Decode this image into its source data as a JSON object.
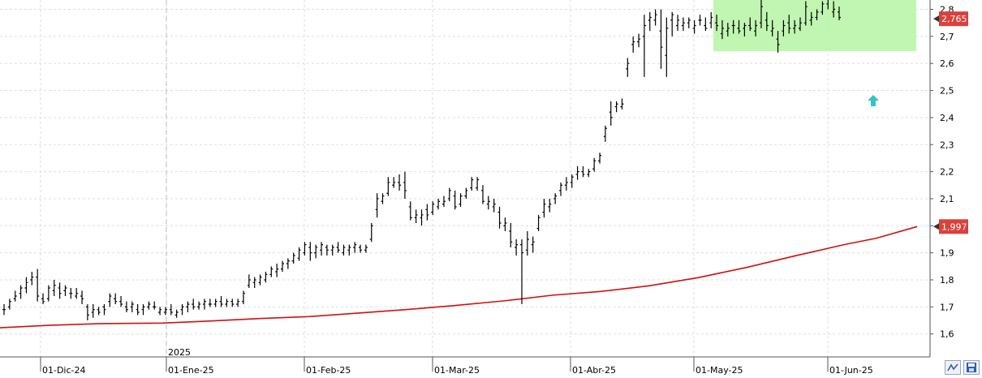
{
  "chart_data": {
    "type": "ohlc",
    "ylim": [
      1.55,
      2.88
    ],
    "y_ticks": [
      "1,6",
      "1,7",
      "1,8",
      "1,9",
      "2",
      "2,1",
      "2,2",
      "2,3",
      "2,4",
      "2,5",
      "2,6",
      "2,7",
      "2,8"
    ],
    "y_tick_values": [
      1.6,
      1.7,
      1.8,
      1.9,
      2.0,
      2.1,
      2.2,
      2.3,
      2.4,
      2.5,
      2.6,
      2.7,
      2.8
    ],
    "x_labels": [
      "01-Dic-24",
      "01-Ene-25",
      "01-Feb-25",
      "01-Mar-25",
      "01-Abr-25",
      "01-May-25",
      "01-Jun-25"
    ],
    "year_label": "2025",
    "last_price_label": "2,765",
    "last_price": 2.765,
    "ma_label": "1,997",
    "ma_value": 1.997,
    "grid": true,
    "colors": {
      "bars": "#000000",
      "ma_line": "#d01010",
      "price_tag": "#d9413a",
      "zone_fill": "#b9f5a9",
      "arrow": "#36c1c8"
    },
    "ohlc": [
      [
        1.69,
        1.71,
        1.67,
        1.69
      ],
      [
        1.7,
        1.73,
        1.69,
        1.72
      ],
      [
        1.73,
        1.76,
        1.72,
        1.74
      ],
      [
        1.75,
        1.78,
        1.73,
        1.77
      ],
      [
        1.77,
        1.81,
        1.75,
        1.79
      ],
      [
        1.8,
        1.83,
        1.78,
        1.81
      ],
      [
        1.81,
        1.84,
        1.72,
        1.74
      ],
      [
        1.73,
        1.75,
        1.71,
        1.72
      ],
      [
        1.73,
        1.78,
        1.72,
        1.77
      ],
      [
        1.76,
        1.8,
        1.74,
        1.78
      ],
      [
        1.77,
        1.79,
        1.73,
        1.75
      ],
      [
        1.76,
        1.78,
        1.74,
        1.77
      ],
      [
        1.75,
        1.77,
        1.73,
        1.75
      ],
      [
        1.74,
        1.77,
        1.73,
        1.75
      ],
      [
        1.74,
        1.76,
        1.71,
        1.73
      ],
      [
        1.7,
        1.71,
        1.65,
        1.67
      ],
      [
        1.68,
        1.71,
        1.66,
        1.69
      ],
      [
        1.69,
        1.7,
        1.67,
        1.68
      ],
      [
        1.7,
        1.71,
        1.67,
        1.69
      ],
      [
        1.72,
        1.75,
        1.7,
        1.74
      ],
      [
        1.73,
        1.75,
        1.71,
        1.72
      ],
      [
        1.72,
        1.74,
        1.7,
        1.71
      ],
      [
        1.7,
        1.72,
        1.68,
        1.69
      ],
      [
        1.7,
        1.72,
        1.68,
        1.71
      ],
      [
        1.69,
        1.71,
        1.67,
        1.68
      ],
      [
        1.69,
        1.71,
        1.67,
        1.7
      ],
      [
        1.7,
        1.72,
        1.69,
        1.71
      ],
      [
        1.7,
        1.72,
        1.69,
        1.7
      ],
      [
        1.68,
        1.7,
        1.67,
        1.69
      ],
      [
        1.68,
        1.7,
        1.67,
        1.69
      ],
      [
        1.69,
        1.71,
        1.67,
        1.68
      ],
      [
        1.67,
        1.69,
        1.66,
        1.68
      ],
      [
        1.69,
        1.71,
        1.67,
        1.7
      ],
      [
        1.7,
        1.72,
        1.68,
        1.71
      ],
      [
        1.71,
        1.73,
        1.69,
        1.7
      ],
      [
        1.7,
        1.72,
        1.69,
        1.71
      ],
      [
        1.71,
        1.73,
        1.69,
        1.72
      ],
      [
        1.71,
        1.73,
        1.7,
        1.71
      ],
      [
        1.71,
        1.73,
        1.7,
        1.72
      ],
      [
        1.72,
        1.74,
        1.7,
        1.71
      ],
      [
        1.71,
        1.73,
        1.7,
        1.72
      ],
      [
        1.72,
        1.73,
        1.7,
        1.71
      ],
      [
        1.71,
        1.73,
        1.7,
        1.72
      ],
      [
        1.72,
        1.76,
        1.71,
        1.75
      ],
      [
        1.78,
        1.82,
        1.77,
        1.8
      ],
      [
        1.79,
        1.81,
        1.77,
        1.8
      ],
      [
        1.79,
        1.82,
        1.78,
        1.81
      ],
      [
        1.8,
        1.83,
        1.79,
        1.82
      ],
      [
        1.82,
        1.85,
        1.81,
        1.84
      ],
      [
        1.83,
        1.86,
        1.81,
        1.84
      ],
      [
        1.84,
        1.87,
        1.83,
        1.86
      ],
      [
        1.86,
        1.88,
        1.84,
        1.87
      ],
      [
        1.87,
        1.9,
        1.86,
        1.89
      ],
      [
        1.88,
        1.92,
        1.87,
        1.91
      ],
      [
        1.9,
        1.94,
        1.89,
        1.93
      ],
      [
        1.92,
        1.94,
        1.87,
        1.9
      ],
      [
        1.9,
        1.93,
        1.88,
        1.92
      ],
      [
        1.91,
        1.94,
        1.89,
        1.93
      ],
      [
        1.92,
        1.93,
        1.89,
        1.91
      ],
      [
        1.91,
        1.93,
        1.89,
        1.92
      ],
      [
        1.92,
        1.94,
        1.9,
        1.91
      ],
      [
        1.9,
        1.93,
        1.89,
        1.92
      ],
      [
        1.91,
        1.93,
        1.89,
        1.92
      ],
      [
        1.92,
        1.94,
        1.9,
        1.93
      ],
      [
        1.92,
        1.93,
        1.9,
        1.91
      ],
      [
        1.91,
        1.93,
        1.9,
        1.92
      ],
      [
        1.95,
        2.01,
        1.94,
        2.0
      ],
      [
        2.06,
        2.12,
        2.03,
        2.1
      ],
      [
        2.09,
        2.12,
        2.08,
        2.11
      ],
      [
        2.12,
        2.18,
        2.11,
        2.16
      ],
      [
        2.15,
        2.18,
        2.14,
        2.16
      ],
      [
        2.16,
        2.19,
        2.13,
        2.15
      ],
      [
        2.16,
        2.2,
        2.1,
        2.13
      ],
      [
        2.07,
        2.09,
        2.02,
        2.03
      ],
      [
        2.03,
        2.06,
        2.01,
        2.04
      ],
      [
        2.03,
        2.06,
        2.0,
        2.04
      ],
      [
        2.06,
        2.08,
        2.02,
        2.04
      ],
      [
        2.05,
        2.09,
        2.04,
        2.08
      ],
      [
        2.07,
        2.1,
        2.06,
        2.09
      ],
      [
        2.08,
        2.11,
        2.07,
        2.09
      ],
      [
        2.1,
        2.14,
        2.09,
        2.13
      ],
      [
        2.11,
        2.13,
        2.06,
        2.07
      ],
      [
        2.08,
        2.12,
        2.07,
        2.11
      ],
      [
        2.11,
        2.14,
        2.1,
        2.13
      ],
      [
        2.14,
        2.18,
        2.13,
        2.17
      ],
      [
        2.14,
        2.18,
        2.13,
        2.17
      ],
      [
        2.13,
        2.15,
        2.08,
        2.09
      ],
      [
        2.08,
        2.11,
        2.06,
        2.09
      ],
      [
        2.07,
        2.1,
        2.05,
        2.08
      ],
      [
        2.05,
        2.07,
        1.99,
        2.01
      ],
      [
        2.0,
        2.03,
        1.98,
        2.01
      ],
      [
        1.98,
        2.01,
        1.92,
        1.94
      ],
      [
        1.92,
        1.95,
        1.89,
        1.93
      ],
      [
        1.93,
        1.95,
        1.71,
        1.9
      ],
      [
        1.91,
        1.98,
        1.89,
        1.95
      ],
      [
        1.93,
        1.96,
        1.9,
        1.94
      ],
      [
        1.99,
        2.04,
        1.98,
        2.03
      ],
      [
        2.05,
        2.1,
        2.03,
        2.08
      ],
      [
        2.07,
        2.1,
        2.05,
        2.08
      ],
      [
        2.1,
        2.12,
        2.08,
        2.11
      ],
      [
        2.13,
        2.16,
        2.11,
        2.15
      ],
      [
        2.15,
        2.18,
        2.13,
        2.16
      ],
      [
        2.16,
        2.19,
        2.14,
        2.18
      ],
      [
        2.19,
        2.22,
        2.17,
        2.2
      ],
      [
        2.2,
        2.22,
        2.18,
        2.19
      ],
      [
        2.19,
        2.21,
        2.18,
        2.2
      ],
      [
        2.21,
        2.25,
        2.2,
        2.24
      ],
      [
        2.24,
        2.27,
        2.23,
        2.26
      ],
      [
        2.33,
        2.37,
        2.31,
        2.36
      ],
      [
        2.42,
        2.46,
        2.37,
        2.4
      ],
      [
        2.44,
        2.46,
        2.42,
        2.45
      ],
      [
        2.44,
        2.47,
        2.43,
        2.45
      ],
      [
        2.58,
        2.62,
        2.55,
        2.6
      ],
      [
        2.67,
        2.7,
        2.64,
        2.68
      ],
      [
        2.68,
        2.71,
        2.66,
        2.69
      ],
      [
        2.7,
        2.78,
        2.55,
        2.74
      ],
      [
        2.76,
        2.79,
        2.72,
        2.77
      ],
      [
        2.76,
        2.8,
        2.74,
        2.78
      ],
      [
        2.72,
        2.8,
        2.58,
        2.66
      ],
      [
        2.63,
        2.77,
        2.55,
        2.73
      ],
      [
        2.76,
        2.79,
        2.7,
        2.78
      ],
      [
        2.74,
        2.78,
        2.72,
        2.76
      ],
      [
        2.74,
        2.77,
        2.72,
        2.75
      ],
      [
        2.75,
        2.77,
        2.73,
        2.76
      ],
      [
        2.73,
        2.76,
        2.71,
        2.74
      ],
      [
        2.76,
        2.78,
        2.74,
        2.76
      ],
      [
        2.74,
        2.77,
        2.72,
        2.73
      ],
      [
        2.75,
        2.79,
        2.73,
        2.77
      ],
      [
        2.75,
        2.78,
        2.72,
        2.74
      ],
      [
        2.71,
        2.76,
        2.69,
        2.73
      ],
      [
        2.72,
        2.75,
        2.7,
        2.73
      ],
      [
        2.74,
        2.76,
        2.71,
        2.74
      ],
      [
        2.73,
        2.76,
        2.71,
        2.72
      ],
      [
        2.73,
        2.75,
        2.7,
        2.74
      ],
      [
        2.74,
        2.77,
        2.72,
        2.73
      ],
      [
        2.72,
        2.76,
        2.7,
        2.74
      ],
      [
        2.75,
        2.84,
        2.73,
        2.81
      ],
      [
        2.76,
        2.79,
        2.72,
        2.74
      ],
      [
        2.72,
        2.76,
        2.7,
        2.73
      ],
      [
        2.69,
        2.72,
        2.64,
        2.67
      ],
      [
        2.72,
        2.76,
        2.7,
        2.74
      ],
      [
        2.75,
        2.78,
        2.71,
        2.73
      ],
      [
        2.73,
        2.76,
        2.71,
        2.74
      ],
      [
        2.73,
        2.77,
        2.72,
        2.75
      ],
      [
        2.75,
        2.83,
        2.74,
        2.81
      ],
      [
        2.76,
        2.79,
        2.74,
        2.77
      ],
      [
        2.77,
        2.8,
        2.76,
        2.79
      ],
      [
        2.79,
        2.83,
        2.78,
        2.82
      ],
      [
        2.82,
        2.86,
        2.8,
        2.84
      ],
      [
        2.79,
        2.83,
        2.77,
        2.8
      ],
      [
        2.79,
        2.81,
        2.76,
        2.77
      ]
    ],
    "ma": [
      [
        0,
        1.623
      ],
      [
        60,
        1.632
      ],
      [
        120,
        1.638
      ],
      [
        200,
        1.64
      ],
      [
        260,
        1.648
      ],
      [
        320,
        1.657
      ],
      [
        380,
        1.664
      ],
      [
        440,
        1.677
      ],
      [
        500,
        1.69
      ],
      [
        560,
        1.705
      ],
      [
        620,
        1.722
      ],
      [
        680,
        1.743
      ],
      [
        740,
        1.757
      ],
      [
        800,
        1.778
      ],
      [
        860,
        1.808
      ],
      [
        920,
        1.846
      ],
      [
        980,
        1.889
      ],
      [
        1040,
        1.93
      ],
      [
        1080,
        1.954
      ],
      [
        1130,
        1.997
      ]
    ]
  },
  "toolbar": {
    "btn1_icon": "zigzag-icon",
    "btn2_icon": "save-icon"
  }
}
